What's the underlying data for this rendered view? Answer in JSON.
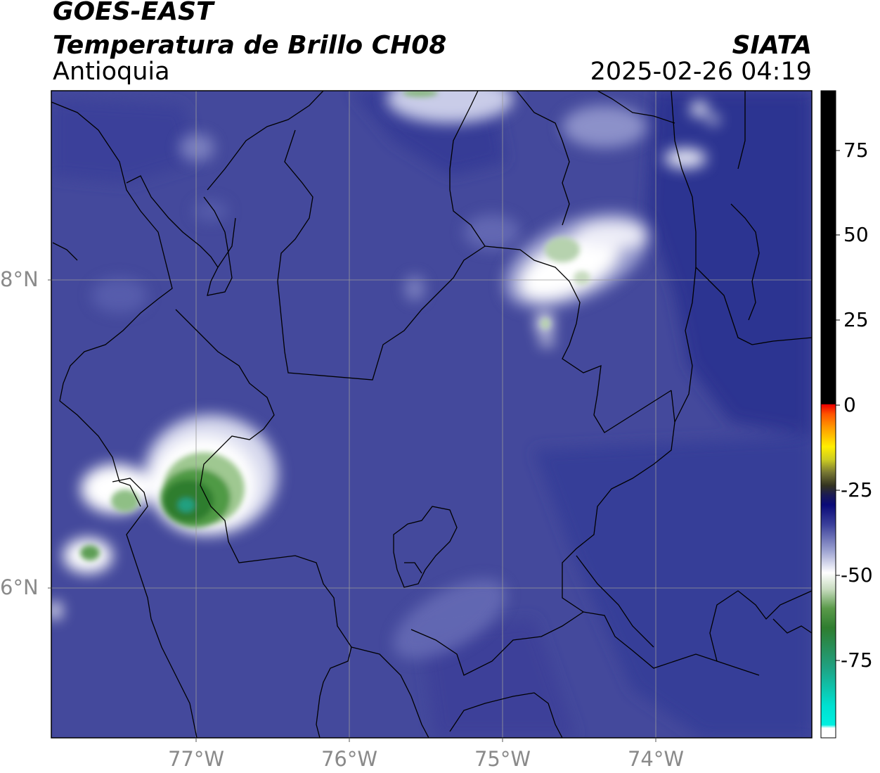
{
  "header": {
    "satellite": "GOES-EAST",
    "product": "Temperatura de Brillo CH08",
    "region": "Antioquia",
    "organization": "SIATA",
    "datetime": "2025-02-26 04:19"
  },
  "map_axes": {
    "latitude_labels": [
      "8°N",
      "6°N"
    ],
    "longitude_labels": [
      "77°W",
      "76°W",
      "75°W",
      "74°W"
    ]
  },
  "colorbar": {
    "range": [
      -95,
      90
    ],
    "tick_labels": [
      "75",
      "50",
      "25",
      "0",
      "-25",
      "-50",
      "-75"
    ],
    "colors": {
      "warm_black": "#000000",
      "red": "#e60000",
      "orange": "#ff8c00",
      "yellow": "#ffee00",
      "dark_blue": "#0a0a6e",
      "mid_blue": "#4a4fa8",
      "white": "#ffffff",
      "green": "#3a8a3a",
      "cyan": "#00e6d6"
    }
  },
  "colors": {
    "background_cloud_blue": "#44499c",
    "deep_blue": "#2b3190",
    "grid": "#9a9a9a",
    "boundaries": "#000000"
  }
}
